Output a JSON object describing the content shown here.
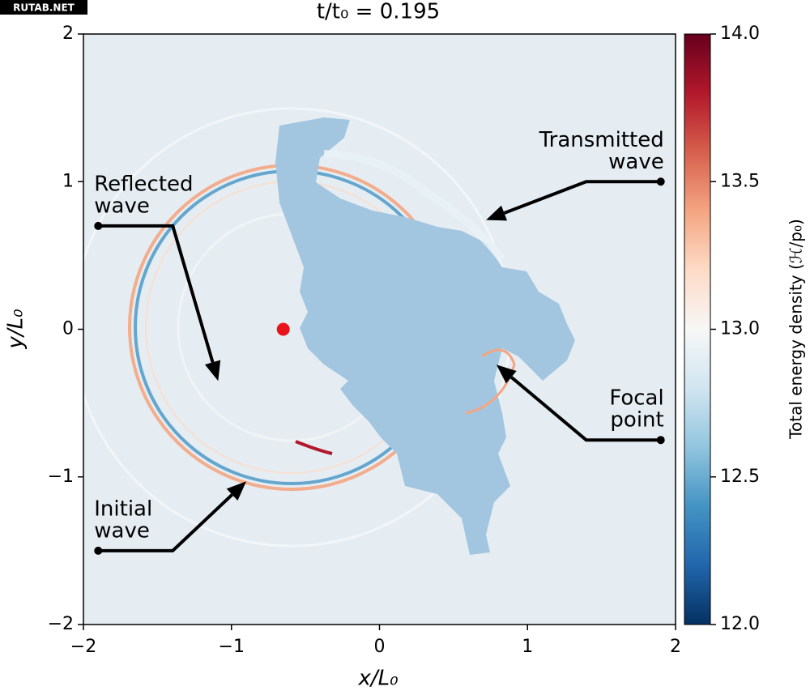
{
  "watermark": "RUTAB.NET",
  "chart_data": {
    "type": "heatmap",
    "title": "t/t₀ = 0.195",
    "x_label": "x/L₀",
    "y_label": "y/L₀",
    "xlim": [
      -2,
      2
    ],
    "ylim": [
      -2,
      2
    ],
    "xticks": [
      {
        "value": -2,
        "label": "−2"
      },
      {
        "value": -1,
        "label": "−1"
      },
      0,
      1,
      2
    ],
    "yticks": [
      {
        "value": -2,
        "label": "−2"
      },
      {
        "value": -1,
        "label": "−1"
      },
      0,
      1,
      2
    ],
    "colorbar": {
      "label": "Total energy density (ℋ/p₀)",
      "cmap": "RdBu_r",
      "clim": [
        12,
        14
      ],
      "ticks": [
        {
          "value": 12,
          "label": "12.0"
        },
        {
          "value": 12.5,
          "label": "12.5"
        },
        {
          "value": 13,
          "label": "13.0"
        },
        {
          "value": 13.5,
          "label": "13.5"
        },
        {
          "value": 14,
          "label": "14.0"
        }
      ]
    },
    "source": {
      "x": -0.65,
      "y": 0,
      "color": "#e8141c"
    },
    "annotations": [
      {
        "lines": [
          "Reflected",
          "wave"
        ],
        "xy": [
          -1.09,
          -0.35
        ],
        "xytext": [
          -1.9,
          0.7
        ]
      },
      {
        "lines": [
          "Transmitted",
          "wave"
        ],
        "xy": [
          0.72,
          0.74
        ],
        "xytext": [
          1.9,
          1.0
        ]
      },
      {
        "lines": [
          "Focal",
          "point"
        ],
        "xy": [
          0.79,
          -0.24
        ],
        "xytext": [
          1.9,
          -0.75
        ]
      },
      {
        "lines": [
          "Initial",
          "wave"
        ],
        "xy": [
          -0.9,
          -1.03
        ],
        "xytext": [
          -1.9,
          -1.5
        ]
      }
    ]
  }
}
